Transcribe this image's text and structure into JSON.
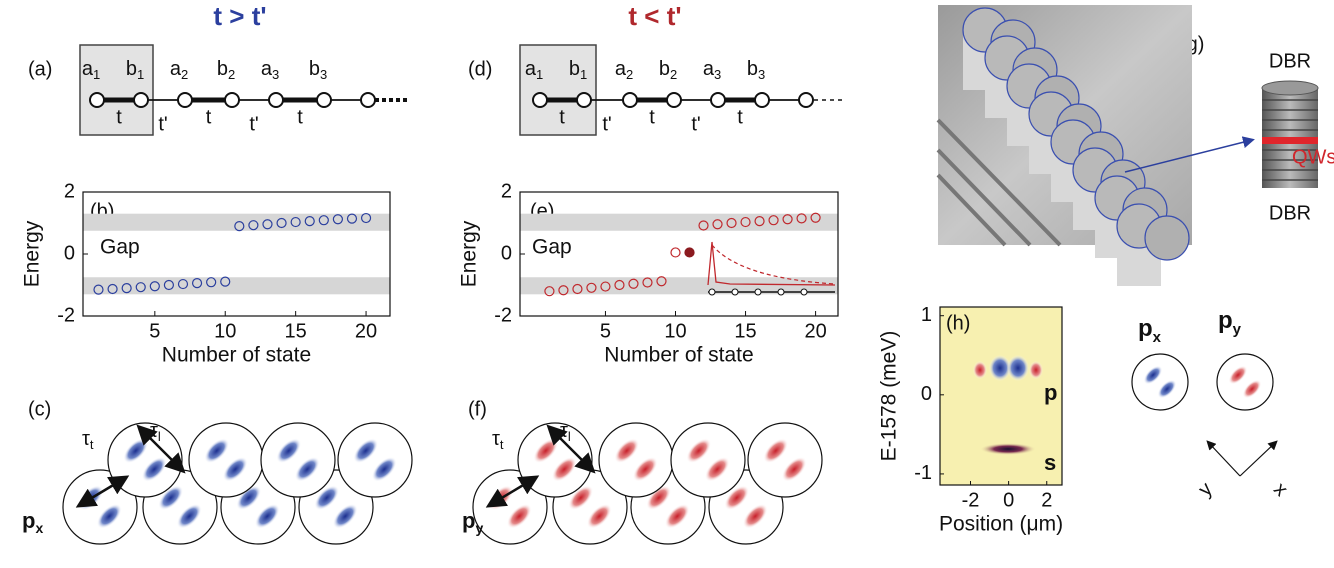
{
  "titles": {
    "left": "t > t'",
    "right": "t < t'"
  },
  "panel_labels": {
    "a": "(a)",
    "b": "(b)",
    "c": "(c)",
    "d": "(d)",
    "e": "(e)",
    "f": "(f)",
    "g": "(g)",
    "h": "(h)"
  },
  "chain_a": {
    "sites": [
      {
        "name": "a",
        "sub": "1"
      },
      {
        "name": "b",
        "sub": "1"
      },
      {
        "name": "a",
        "sub": "2"
      },
      {
        "name": "b",
        "sub": "2"
      },
      {
        "name": "a",
        "sub": "3"
      },
      {
        "name": "b",
        "sub": "3"
      }
    ],
    "bonds": [
      "t",
      "t'",
      "t",
      "t'",
      "t"
    ]
  },
  "chain_d": {
    "sites": [
      {
        "name": "a",
        "sub": "1"
      },
      {
        "name": "b",
        "sub": "1"
      },
      {
        "name": "a",
        "sub": "2"
      },
      {
        "name": "b",
        "sub": "2"
      },
      {
        "name": "a",
        "sub": "3"
      },
      {
        "name": "b",
        "sub": "3"
      }
    ],
    "bonds": [
      "t",
      "t'",
      "t",
      "t'",
      "t"
    ]
  },
  "panel_c": {
    "orbital": {
      "main": "p",
      "sub": "x"
    },
    "tau_t": {
      "main": "τ",
      "sub": "t"
    },
    "tau_l": {
      "main": "τ",
      "sub": "l"
    }
  },
  "panel_f": {
    "orbital": {
      "main": "p",
      "sub": "y"
    },
    "tau_t": {
      "main": "τ",
      "sub": "t"
    },
    "tau_l": {
      "main": "τ",
      "sub": "l"
    }
  },
  "panel_g": {
    "top": "DBR",
    "middle": "QWs",
    "bottom": "DBR"
  },
  "panel_h_side": {
    "px": {
      "main": "p",
      "sub": "x"
    },
    "py": {
      "main": "p",
      "sub": "y"
    },
    "axis_y": "y",
    "axis_x": "x"
  },
  "chart_data": [
    {
      "type": "scatter",
      "xlabel": "Number of state",
      "ylabel": "Energy",
      "annotation": "Gap",
      "xlim": [
        -0.1,
        21.7
      ],
      "ylim": [
        -2,
        2
      ],
      "xticks": [
        5,
        10,
        15,
        20
      ],
      "yticks": [
        -2,
        0,
        2
      ],
      "bands": [
        [
          -1.3,
          -0.75
        ],
        [
          0.75,
          1.3
        ]
      ],
      "series": [
        {
          "color": "#2b3f9e",
          "marker": "open",
          "x": [
            1,
            2,
            3,
            4,
            5,
            6,
            7,
            8,
            9,
            10,
            11,
            12,
            13,
            14,
            15,
            16,
            17,
            18,
            19,
            20
          ],
          "values": [
            -1.15,
            -1.13,
            -1.1,
            -1.07,
            -1.04,
            -1.0,
            -0.97,
            -0.94,
            -0.91,
            -0.89,
            0.9,
            0.93,
            0.96,
            1.0,
            1.03,
            1.06,
            1.09,
            1.12,
            1.14,
            1.16
          ]
        }
      ]
    },
    {
      "type": "scatter",
      "xlabel": "Number of state",
      "ylabel": "Energy",
      "annotation": "Gap",
      "xlim": [
        -1.1,
        21.6
      ],
      "ylim": [
        -2,
        2
      ],
      "xticks": [
        5,
        10,
        15,
        20
      ],
      "yticks": [
        -2,
        0,
        2
      ],
      "bands": [
        [
          -1.3,
          -0.75
        ],
        [
          0.75,
          1.3
        ]
      ],
      "series": [
        {
          "color": "#c0282d",
          "marker": "open",
          "x": [
            1,
            2,
            3,
            4,
            5,
            6,
            7,
            8,
            9,
            10,
            12,
            13,
            14,
            15,
            16,
            17,
            18,
            19,
            20
          ],
          "values": [
            -1.2,
            -1.17,
            -1.13,
            -1.09,
            -1.05,
            -1.0,
            -0.96,
            -0.92,
            -0.88,
            0.05,
            0.92,
            0.96,
            1.0,
            1.03,
            1.06,
            1.09,
            1.12,
            1.15,
            1.17
          ]
        },
        {
          "color": "#8b1a1f",
          "marker": "filled",
          "x": [
            11
          ],
          "values": [
            0.05
          ]
        }
      ]
    },
    {
      "type": "heatmap",
      "xlabel": "Position (μm)",
      "ylabel": "E-1578 (meV)",
      "xlim": [
        -3.6,
        2.8
      ],
      "ylim": [
        -1.14,
        1.11
      ],
      "xticks": [
        -2,
        0,
        2
      ],
      "yticks": [
        -1,
        0,
        1
      ],
      "annotations": [
        "p",
        "s"
      ]
    }
  ]
}
